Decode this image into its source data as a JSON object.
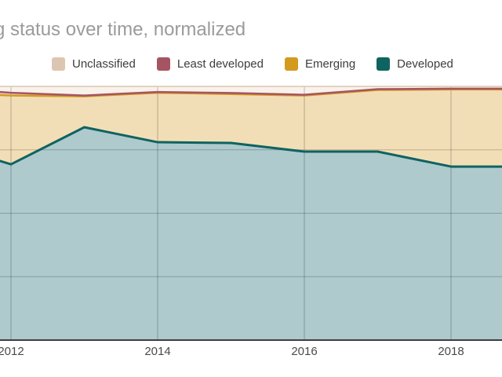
{
  "header": {
    "title": "g status over time, normalized"
  },
  "legend": {
    "items": [
      {
        "label": "Unclassified",
        "color": "#dcc6b2"
      },
      {
        "label": "Least developed",
        "color": "#a65463"
      },
      {
        "label": "Emerging",
        "color": "#d49a1e"
      },
      {
        "label": "Developed",
        "color": "#0f6361"
      }
    ]
  },
  "chart_data": {
    "type": "area",
    "stacked": true,
    "normalized": true,
    "title": "g status over time, normalized",
    "xlabel": "",
    "ylabel": "",
    "ylim": [
      0,
      1
    ],
    "y_gridlines": [
      0.25,
      0.5,
      0.75
    ],
    "grid": true,
    "legend_position": "top",
    "x": [
      2011.85,
      2012,
      2013,
      2014,
      2015,
      2016,
      2017,
      2018,
      2018.7
    ],
    "x_ticks": [
      2012,
      2014,
      2016,
      2018
    ],
    "x_tick_labels": [
      "2012",
      "2014",
      "2016",
      "2018"
    ],
    "series": [
      {
        "name": "Developed",
        "line_color": "#0f6361",
        "fill_color": "#aecacd",
        "values": [
          0.706,
          0.693,
          0.839,
          0.78,
          0.777,
          0.743,
          0.743,
          0.684,
          0.684
        ]
      },
      {
        "name": "Emerging",
        "line_color": "#d49a1e",
        "fill_color": "#f2deb6",
        "values": [
          0.26,
          0.271,
          0.122,
          0.195,
          0.193,
          0.221,
          0.243,
          0.304,
          0.304
        ]
      },
      {
        "name": "Least developed",
        "line_color": "#a65463",
        "fill_color": "#eddad6",
        "values": [
          0.012,
          0.011,
          0.003,
          0.003,
          0.004,
          0.003,
          0.003,
          0.003,
          0.003
        ]
      },
      {
        "name": "Unclassified",
        "line_color": "#dcc6b2",
        "fill_color": "#f9f2ea",
        "values": [
          0.022,
          0.025,
          0.036,
          0.022,
          0.026,
          0.033,
          0.011,
          0.009,
          0.009
        ]
      }
    ]
  }
}
